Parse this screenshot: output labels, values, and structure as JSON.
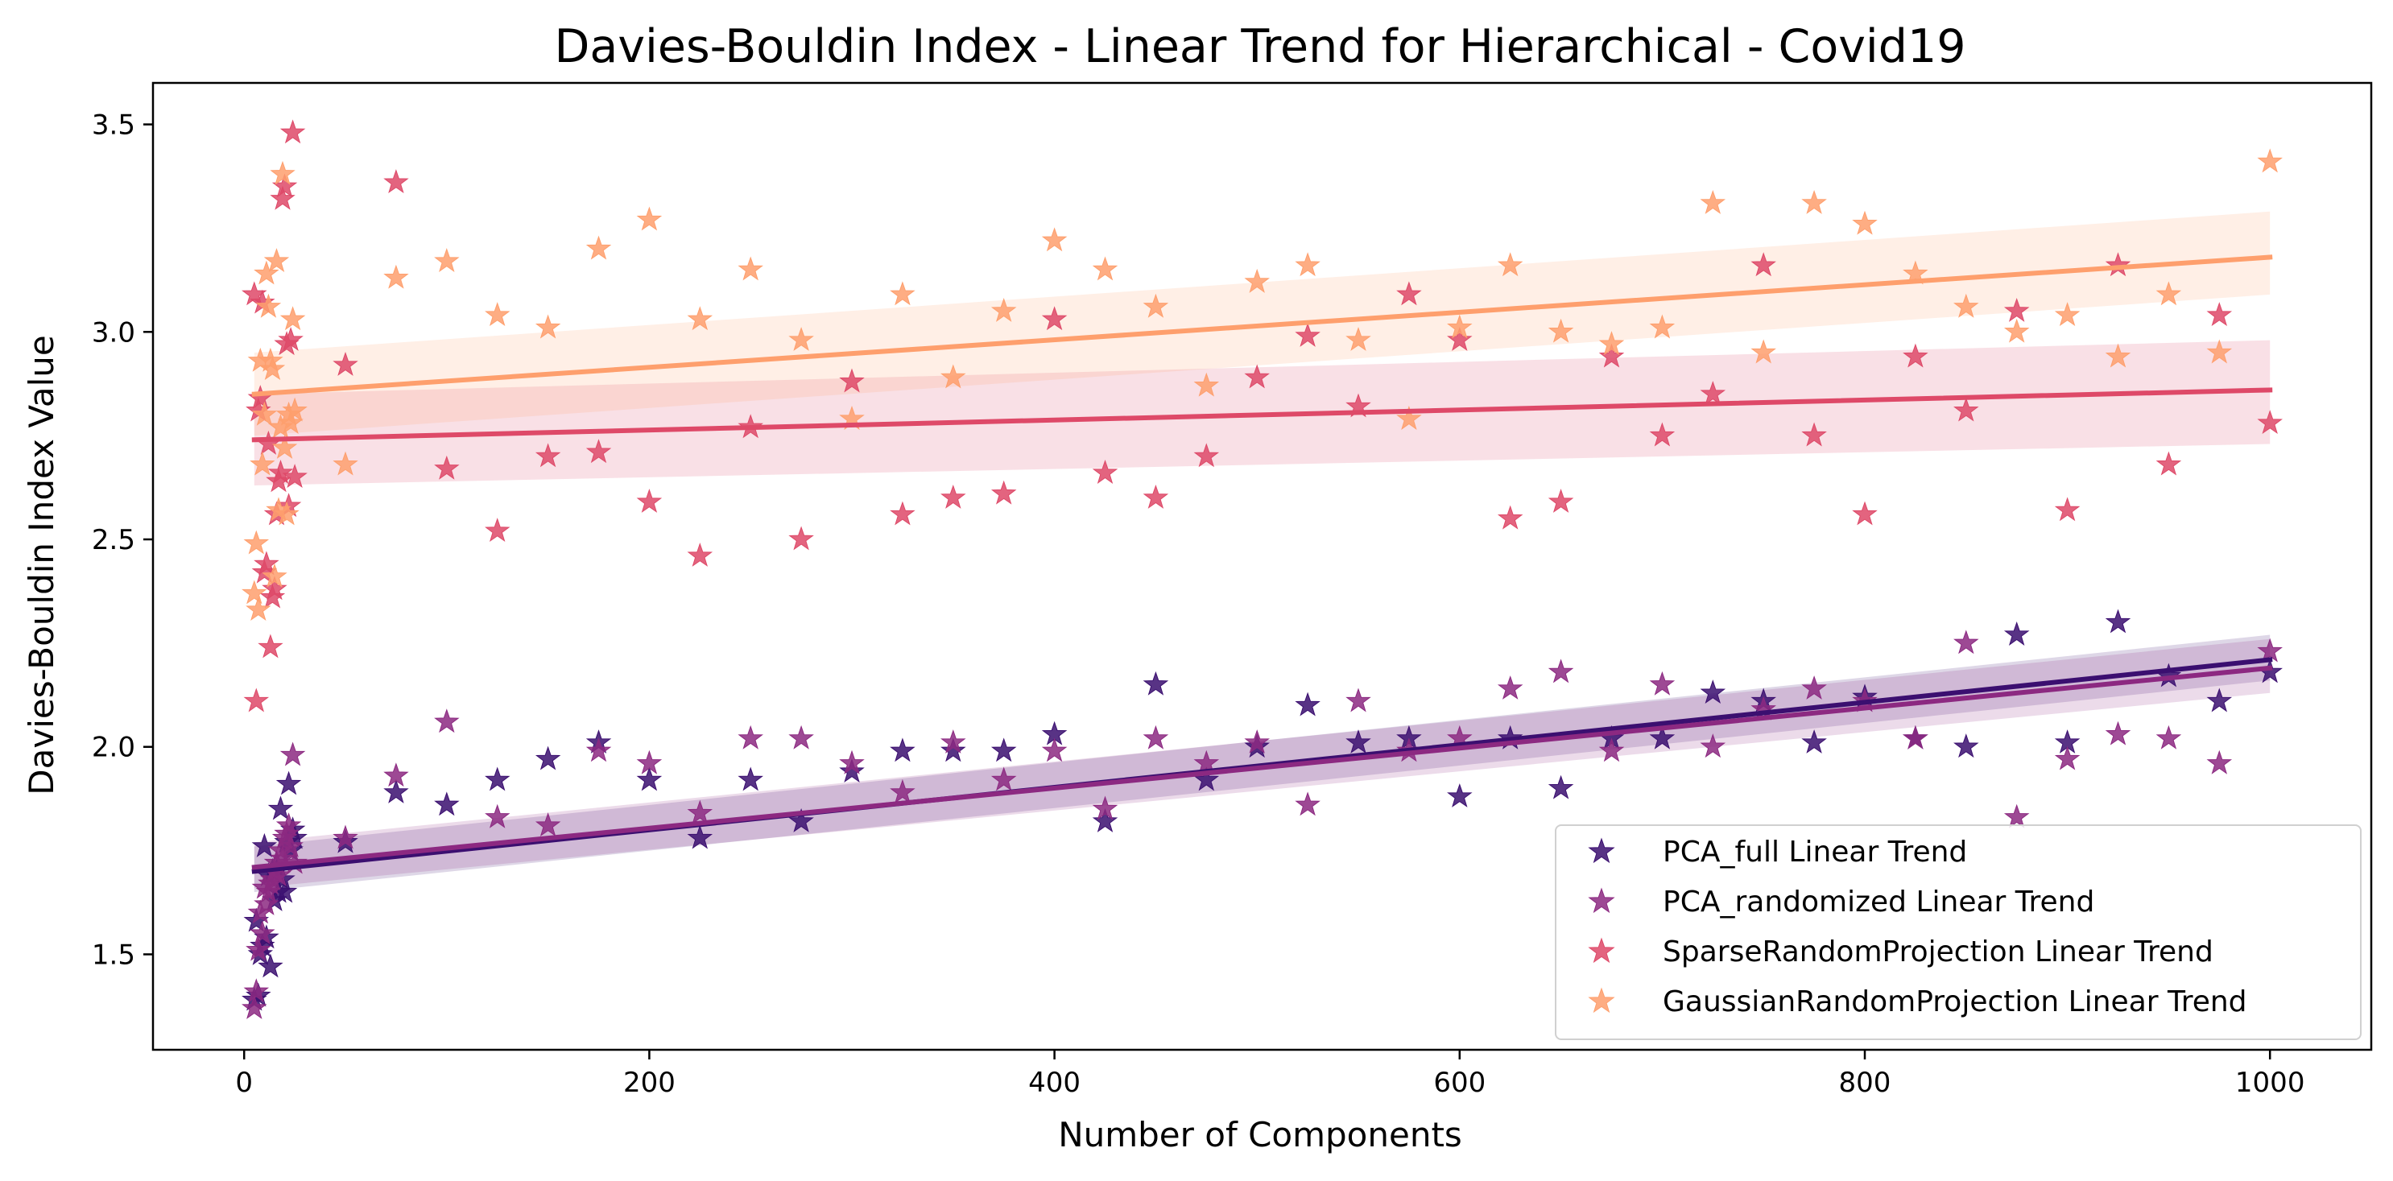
{
  "chart_data": {
    "type": "scatter",
    "title": "Davies-Bouldin Index - Linear Trend for Hierarchical - Covid19",
    "xlabel": "Number of Components",
    "ylabel": "Davies-Bouldin Index Value",
    "xlim": [
      -45,
      1050
    ],
    "ylim": [
      1.27,
      3.6
    ],
    "xticks": [
      0,
      200,
      400,
      600,
      800,
      1000
    ],
    "yticks": [
      1.5,
      2.0,
      2.5,
      3.0,
      3.5
    ],
    "xtick_labels": [
      "0",
      "200",
      "400",
      "600",
      "800",
      "1000"
    ],
    "ytick_labels": [
      "1.5",
      "2.0",
      "2.5",
      "3.0",
      "3.5"
    ],
    "grid": false,
    "legend_position": "lower right",
    "series": [
      {
        "name": "PCA_full Linear Trend",
        "color": "#3b0f70",
        "marker": "star",
        "trend": {
          "x": [
            5,
            1000
          ],
          "y": [
            1.7,
            2.21
          ],
          "ci_low": [
            1.65,
            2.16
          ],
          "ci_high": [
            1.76,
            2.27
          ]
        },
        "points": [
          [
            5,
            1.39
          ],
          [
            6,
            1.58
          ],
          [
            7,
            1.4
          ],
          [
            8,
            1.5
          ],
          [
            9,
            1.52
          ],
          [
            10,
            1.76
          ],
          [
            11,
            1.54
          ],
          [
            12,
            1.69
          ],
          [
            13,
            1.47
          ],
          [
            14,
            1.7
          ],
          [
            15,
            1.63
          ],
          [
            16,
            1.7
          ],
          [
            17,
            1.65
          ],
          [
            18,
            1.85
          ],
          [
            19,
            1.68
          ],
          [
            20,
            1.65
          ],
          [
            21,
            1.77
          ],
          [
            22,
            1.91
          ],
          [
            23,
            1.75
          ],
          [
            24,
            1.8
          ],
          [
            25,
            1.78
          ],
          [
            50,
            1.77
          ],
          [
            75,
            1.89
          ],
          [
            100,
            1.86
          ],
          [
            125,
            1.92
          ],
          [
            150,
            1.97
          ],
          [
            175,
            2.01
          ],
          [
            200,
            1.92
          ],
          [
            225,
            1.78
          ],
          [
            250,
            1.92
          ],
          [
            275,
            1.82
          ],
          [
            300,
            1.94
          ],
          [
            325,
            1.99
          ],
          [
            350,
            1.99
          ],
          [
            375,
            1.99
          ],
          [
            400,
            2.03
          ],
          [
            425,
            1.82
          ],
          [
            450,
            2.15
          ],
          [
            475,
            1.92
          ],
          [
            500,
            2.0
          ],
          [
            525,
            2.1
          ],
          [
            550,
            2.01
          ],
          [
            575,
            2.02
          ],
          [
            600,
            1.88
          ],
          [
            625,
            2.02
          ],
          [
            650,
            1.9
          ],
          [
            675,
            2.02
          ],
          [
            700,
            2.02
          ],
          [
            725,
            2.13
          ],
          [
            750,
            2.11
          ],
          [
            775,
            2.01
          ],
          [
            800,
            2.12
          ],
          [
            825,
            2.02
          ],
          [
            850,
            2.0
          ],
          [
            875,
            2.27
          ],
          [
            900,
            2.01
          ],
          [
            925,
            2.3
          ],
          [
            950,
            2.17
          ],
          [
            975,
            2.11
          ],
          [
            1000,
            2.18
          ]
        ]
      },
      {
        "name": "PCA_randomized Linear Trend",
        "color": "#8c2981",
        "marker": "star",
        "trend": {
          "x": [
            5,
            1000
          ],
          "y": [
            1.71,
            2.19
          ],
          "ci_low": [
            1.66,
            2.13
          ],
          "ci_high": [
            1.77,
            2.26
          ]
        },
        "points": [
          [
            5,
            1.37
          ],
          [
            6,
            1.41
          ],
          [
            7,
            1.51
          ],
          [
            8,
            1.6
          ],
          [
            9,
            1.55
          ],
          [
            10,
            1.66
          ],
          [
            11,
            1.62
          ],
          [
            12,
            1.65
          ],
          [
            13,
            1.67
          ],
          [
            14,
            1.68
          ],
          [
            15,
            1.7
          ],
          [
            16,
            1.72
          ],
          [
            17,
            1.69
          ],
          [
            18,
            1.75
          ],
          [
            19,
            1.73
          ],
          [
            20,
            1.78
          ],
          [
            21,
            1.79
          ],
          [
            22,
            1.81
          ],
          [
            23,
            1.76
          ],
          [
            24,
            1.98
          ],
          [
            25,
            1.72
          ],
          [
            50,
            1.78
          ],
          [
            75,
            1.93
          ],
          [
            100,
            2.06
          ],
          [
            125,
            1.83
          ],
          [
            150,
            1.81
          ],
          [
            175,
            1.99
          ],
          [
            200,
            1.96
          ],
          [
            225,
            1.84
          ],
          [
            250,
            2.02
          ],
          [
            275,
            2.02
          ],
          [
            300,
            1.96
          ],
          [
            325,
            1.89
          ],
          [
            350,
            2.01
          ],
          [
            375,
            1.92
          ],
          [
            400,
            1.99
          ],
          [
            425,
            1.85
          ],
          [
            450,
            2.02
          ],
          [
            475,
            1.96
          ],
          [
            500,
            2.01
          ],
          [
            525,
            1.86
          ],
          [
            550,
            2.11
          ],
          [
            575,
            1.99
          ],
          [
            600,
            2.02
          ],
          [
            625,
            2.14
          ],
          [
            650,
            2.18
          ],
          [
            675,
            1.99
          ],
          [
            700,
            2.15
          ],
          [
            725,
            2.0
          ],
          [
            750,
            2.09
          ],
          [
            775,
            2.14
          ],
          [
            800,
            2.11
          ],
          [
            825,
            2.02
          ],
          [
            850,
            2.25
          ],
          [
            875,
            1.83
          ],
          [
            900,
            1.97
          ],
          [
            925,
            2.03
          ],
          [
            950,
            2.02
          ],
          [
            975,
            1.96
          ],
          [
            1000,
            2.23
          ]
        ]
      },
      {
        "name": "SparseRandomProjection Linear Trend",
        "color": "#de4968",
        "marker": "star",
        "trend": {
          "x": [
            5,
            1000
          ],
          "y": [
            2.74,
            2.86
          ],
          "ci_low": [
            2.63,
            2.73
          ],
          "ci_high": [
            2.85,
            2.98
          ]
        },
        "points": [
          [
            5,
            3.09
          ],
          [
            6,
            2.11
          ],
          [
            7,
            2.81
          ],
          [
            8,
            2.84
          ],
          [
            9,
            3.07
          ],
          [
            10,
            2.42
          ],
          [
            11,
            2.44
          ],
          [
            12,
            2.73
          ],
          [
            13,
            2.24
          ],
          [
            14,
            2.36
          ],
          [
            15,
            2.38
          ],
          [
            16,
            2.56
          ],
          [
            17,
            2.64
          ],
          [
            18,
            2.66
          ],
          [
            19,
            3.32
          ],
          [
            20,
            3.35
          ],
          [
            21,
            2.97
          ],
          [
            22,
            2.58
          ],
          [
            23,
            2.98
          ],
          [
            24,
            3.48
          ],
          [
            25,
            2.65
          ],
          [
            50,
            2.92
          ],
          [
            75,
            3.36
          ],
          [
            100,
            2.67
          ],
          [
            125,
            2.52
          ],
          [
            150,
            2.7
          ],
          [
            175,
            2.71
          ],
          [
            200,
            2.59
          ],
          [
            225,
            2.46
          ],
          [
            250,
            2.77
          ],
          [
            275,
            2.5
          ],
          [
            300,
            2.88
          ],
          [
            325,
            2.56
          ],
          [
            350,
            2.6
          ],
          [
            375,
            2.61
          ],
          [
            400,
            3.03
          ],
          [
            425,
            2.66
          ],
          [
            450,
            2.6
          ],
          [
            475,
            2.7
          ],
          [
            500,
            2.89
          ],
          [
            525,
            2.99
          ],
          [
            550,
            2.82
          ],
          [
            575,
            3.09
          ],
          [
            600,
            2.98
          ],
          [
            625,
            2.55
          ],
          [
            650,
            2.59
          ],
          [
            675,
            2.94
          ],
          [
            700,
            2.75
          ],
          [
            725,
            2.85
          ],
          [
            750,
            3.16
          ],
          [
            775,
            2.75
          ],
          [
            800,
            2.56
          ],
          [
            825,
            2.94
          ],
          [
            850,
            2.81
          ],
          [
            875,
            3.05
          ],
          [
            900,
            2.57
          ],
          [
            925,
            3.16
          ],
          [
            950,
            2.68
          ],
          [
            975,
            3.04
          ],
          [
            1000,
            2.78
          ]
        ]
      },
      {
        "name": "GaussianRandomProjection Linear Trend",
        "color": "#fe9f6d",
        "marker": "star",
        "trend": {
          "x": [
            5,
            1000
          ],
          "y": [
            2.85,
            3.18
          ],
          "ci_low": [
            2.75,
            3.09
          ],
          "ci_high": [
            2.95,
            3.29
          ]
        },
        "points": [
          [
            5,
            2.37
          ],
          [
            6,
            2.49
          ],
          [
            7,
            2.33
          ],
          [
            8,
            2.93
          ],
          [
            9,
            2.68
          ],
          [
            10,
            2.8
          ],
          [
            11,
            3.14
          ],
          [
            12,
            3.06
          ],
          [
            13,
            2.93
          ],
          [
            14,
            2.91
          ],
          [
            15,
            2.41
          ],
          [
            16,
            3.17
          ],
          [
            17,
            2.57
          ],
          [
            18,
            2.77
          ],
          [
            19,
            3.38
          ],
          [
            20,
            2.72
          ],
          [
            21,
            2.56
          ],
          [
            22,
            2.8
          ],
          [
            23,
            2.78
          ],
          [
            24,
            3.03
          ],
          [
            25,
            2.81
          ],
          [
            50,
            2.68
          ],
          [
            75,
            3.13
          ],
          [
            100,
            3.17
          ],
          [
            125,
            3.04
          ],
          [
            150,
            3.01
          ],
          [
            175,
            3.2
          ],
          [
            200,
            3.27
          ],
          [
            225,
            3.03
          ],
          [
            250,
            3.15
          ],
          [
            275,
            2.98
          ],
          [
            300,
            2.79
          ],
          [
            325,
            3.09
          ],
          [
            350,
            2.89
          ],
          [
            375,
            3.05
          ],
          [
            400,
            3.22
          ],
          [
            425,
            3.15
          ],
          [
            450,
            3.06
          ],
          [
            475,
            2.87
          ],
          [
            500,
            3.12
          ],
          [
            525,
            3.16
          ],
          [
            550,
            2.98
          ],
          [
            575,
            2.79
          ],
          [
            600,
            3.01
          ],
          [
            625,
            3.16
          ],
          [
            650,
            3.0
          ],
          [
            675,
            2.97
          ],
          [
            700,
            3.01
          ],
          [
            725,
            3.31
          ],
          [
            750,
            2.95
          ],
          [
            775,
            3.31
          ],
          [
            800,
            3.26
          ],
          [
            825,
            3.14
          ],
          [
            850,
            3.06
          ],
          [
            875,
            3.0
          ],
          [
            900,
            3.04
          ],
          [
            925,
            2.94
          ],
          [
            950,
            3.09
          ],
          [
            975,
            2.95
          ],
          [
            1000,
            3.41
          ]
        ]
      }
    ]
  }
}
